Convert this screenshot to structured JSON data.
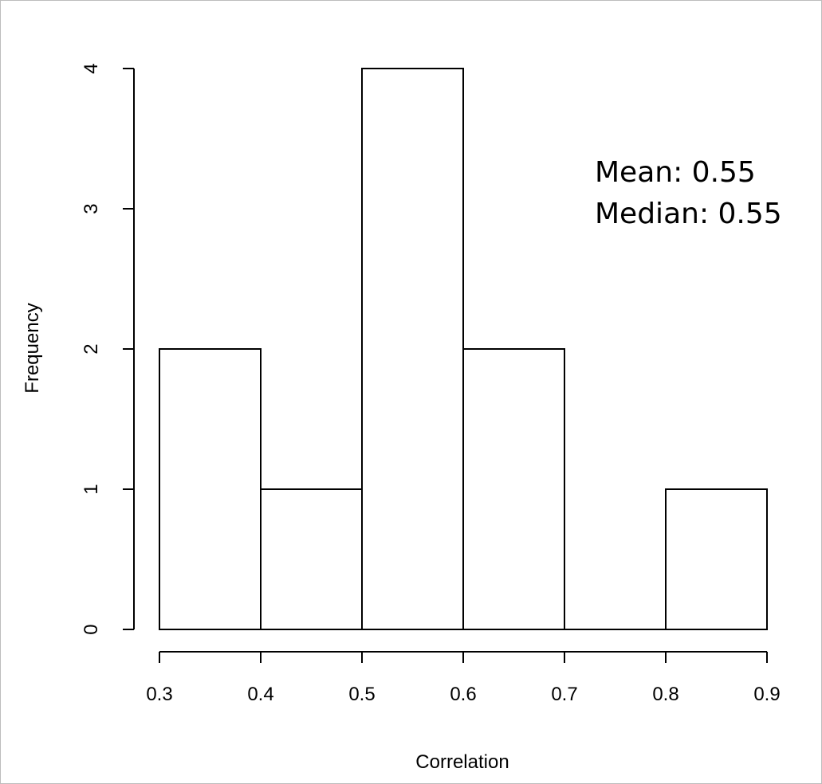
{
  "chart_data": {
    "type": "bar",
    "subtype": "histogram",
    "bins": [
      {
        "from": 0.3,
        "to": 0.4,
        "count": 2
      },
      {
        "from": 0.4,
        "to": 0.5,
        "count": 1
      },
      {
        "from": 0.5,
        "to": 0.6,
        "count": 4
      },
      {
        "from": 0.6,
        "to": 0.7,
        "count": 2
      },
      {
        "from": 0.7,
        "to": 0.8,
        "count": 0
      },
      {
        "from": 0.8,
        "to": 0.9,
        "count": 1
      }
    ],
    "xlabel": "Correlation",
    "ylabel": "Frequency",
    "xlim": [
      0.3,
      0.9
    ],
    "ylim": [
      0,
      4
    ],
    "x_ticks": [
      "0.3",
      "0.4",
      "0.5",
      "0.6",
      "0.7",
      "0.8",
      "0.9"
    ],
    "y_ticks": [
      "0",
      "1",
      "2",
      "3",
      "4"
    ],
    "grid": false,
    "annotations": [
      "Mean: 0.55",
      "Median: 0.55"
    ],
    "colors": {
      "bar_fill": "#ffffff",
      "bar_stroke": "#000000"
    }
  }
}
